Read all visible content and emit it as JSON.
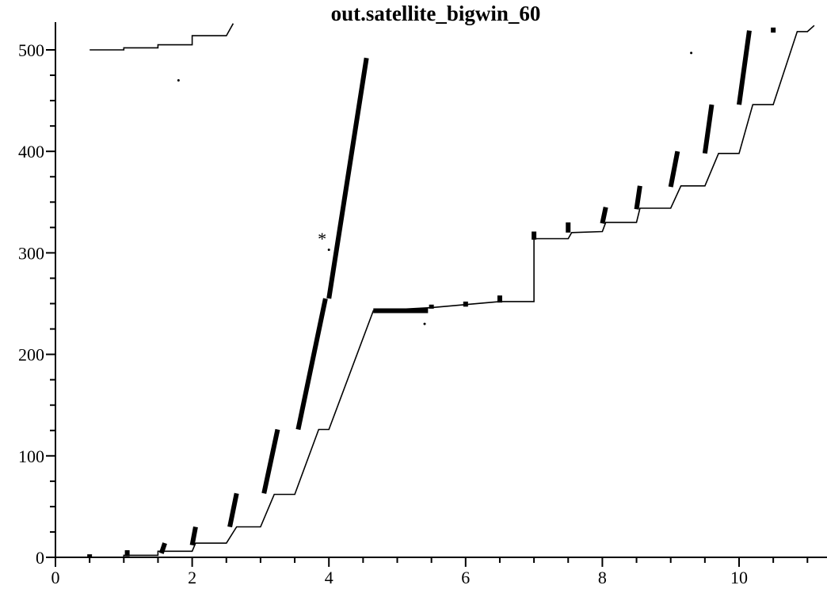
{
  "chart_data": {
    "type": "line",
    "title": "out.satellite_bigwin_60",
    "xlabel": "",
    "ylabel": "",
    "xlim": [
      0,
      11.2
    ],
    "ylim": [
      0,
      520
    ],
    "xticks": [
      "0",
      "2",
      "4",
      "6",
      "8",
      "10"
    ],
    "yticks": [
      "0",
      "100",
      "200",
      "300",
      "400",
      "500"
    ],
    "grid": false,
    "legend": "none",
    "annotations": [
      {
        "text": "*",
        "x": 3.9,
        "y": 316
      }
    ],
    "series": [
      {
        "style": "thin-line",
        "points": [
          [
            0.0,
            0
          ],
          [
            0.1,
            0
          ],
          [
            0.5,
            0
          ],
          [
            1.0,
            0
          ],
          [
            1.0,
            2
          ],
          [
            1.5,
            2
          ],
          [
            1.5,
            6
          ],
          [
            2.0,
            6
          ],
          [
            2.05,
            14
          ],
          [
            2.5,
            14
          ],
          [
            2.65,
            30
          ],
          [
            3.0,
            30
          ],
          [
            3.2,
            62
          ],
          [
            3.5,
            62
          ],
          [
            3.85,
            126
          ],
          [
            4.0,
            126
          ],
          [
            4.65,
            243
          ],
          [
            5.5,
            246
          ],
          [
            6.5,
            252
          ],
          [
            7.0,
            252
          ],
          [
            7.0,
            314
          ],
          [
            7.5,
            314
          ],
          [
            7.55,
            320
          ],
          [
            8.0,
            321
          ],
          [
            8.05,
            330
          ],
          [
            8.5,
            330
          ],
          [
            8.55,
            344
          ],
          [
            9.0,
            344
          ],
          [
            9.15,
            366
          ],
          [
            9.5,
            366
          ],
          [
            9.7,
            398
          ],
          [
            10.0,
            398
          ],
          [
            10.2,
            446
          ],
          [
            10.5,
            446
          ],
          [
            10.85,
            518
          ],
          [
            11.0,
            518
          ],
          [
            11.1,
            524
          ]
        ]
      },
      {
        "style": "thin-line",
        "points": [
          [
            0.5,
            500
          ],
          [
            1.0,
            500
          ],
          [
            1.0,
            502
          ],
          [
            1.5,
            502
          ],
          [
            1.5,
            505
          ],
          [
            2.0,
            505
          ],
          [
            2.0,
            514
          ],
          [
            2.5,
            514
          ],
          [
            2.55,
            520
          ],
          [
            2.6,
            526
          ]
        ]
      },
      {
        "style": "thick-segments",
        "segments": [
          [
            [
              0.5,
              0
            ],
            [
              0.5,
              3
            ]
          ],
          [
            [
              1.05,
              1
            ],
            [
              1.05,
              7
            ]
          ],
          [
            [
              1.55,
              4
            ],
            [
              1.6,
              14
            ]
          ],
          [
            [
              2.0,
              12
            ],
            [
              2.05,
              30
            ]
          ],
          [
            [
              2.55,
              30
            ],
            [
              2.65,
              63
            ]
          ],
          [
            [
              3.05,
              63
            ],
            [
              3.25,
              126
            ]
          ],
          [
            [
              3.55,
              126
            ],
            [
              3.95,
              255
            ]
          ],
          [
            [
              4.0,
              255
            ],
            [
              4.55,
              492
            ]
          ],
          [
            [
              4.65,
              243
            ],
            [
              5.45,
              243
            ]
          ],
          [
            [
              5.5,
              245
            ],
            [
              5.5,
              249
            ]
          ],
          [
            [
              6.0,
              247
            ],
            [
              6.0,
              252
            ]
          ],
          [
            [
              6.5,
              251
            ],
            [
              6.5,
              258
            ]
          ],
          [
            [
              7.0,
              313
            ],
            [
              7.0,
              321
            ]
          ],
          [
            [
              7.5,
              320
            ],
            [
              7.5,
              330
            ]
          ],
          [
            [
              8.0,
              329
            ],
            [
              8.05,
              345
            ]
          ],
          [
            [
              8.5,
              343
            ],
            [
              8.55,
              366
            ]
          ],
          [
            [
              9.0,
              365
            ],
            [
              9.1,
              400
            ]
          ],
          [
            [
              9.5,
              398
            ],
            [
              9.6,
              446
            ]
          ],
          [
            [
              10.0,
              446
            ],
            [
              10.15,
              519
            ]
          ],
          [
            [
              10.5,
              517
            ],
            [
              10.5,
              522
            ]
          ]
        ]
      }
    ],
    "scatter_dots": [
      [
        1.8,
        470
      ],
      [
        4.0,
        303
      ],
      [
        5.4,
        230
      ],
      [
        9.3,
        497
      ]
    ]
  }
}
